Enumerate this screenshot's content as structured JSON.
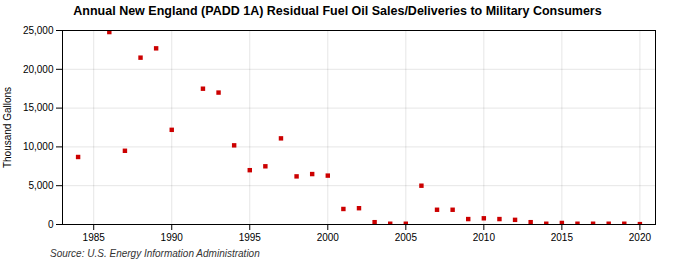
{
  "chart_data": {
    "type": "scatter",
    "title": "Annual New England (PADD 1A) Residual Fuel Oil Sales/Deliveries to Military Consumers",
    "ylabel": "Thousand Gallons",
    "annotations": [
      "Source: U.S. Energy Information Administration"
    ],
    "x": [
      1984,
      1986,
      1987,
      1988,
      1989,
      1990,
      1992,
      1993,
      1994,
      1995,
      1996,
      1997,
      1998,
      1999,
      2000,
      2001,
      2002,
      2003,
      2004,
      2005,
      2006,
      2007,
      2008,
      2009,
      2010,
      2011,
      2012,
      2013,
      2014,
      2015,
      2016,
      2017,
      2018,
      2019,
      2020
    ],
    "values": [
      8700,
      24800,
      9500,
      21500,
      22700,
      12200,
      17500,
      17000,
      10200,
      7000,
      7500,
      11100,
      6200,
      6500,
      6300,
      2000,
      2100,
      300,
      100,
      100,
      5000,
      1900,
      1900,
      700,
      800,
      700,
      600,
      300,
      100,
      200,
      100,
      100,
      100,
      100,
      50
    ],
    "color": "#cc0000",
    "marker": "square",
    "xlim": [
      1983,
      2021
    ],
    "ylim": [
      0,
      25000
    ],
    "xticks": [
      1985,
      1990,
      1995,
      2000,
      2005,
      2010,
      2015,
      2020
    ],
    "yticks": [
      0,
      {
        "value": 5000,
        "label": "5,000"
      },
      {
        "value": 10000,
        "label": "10,000"
      },
      {
        "value": 15000,
        "label": "15,000"
      },
      {
        "value": 20000,
        "label": "20,000"
      },
      {
        "value": 25000,
        "label": "25,000"
      }
    ],
    "grid": true
  }
}
